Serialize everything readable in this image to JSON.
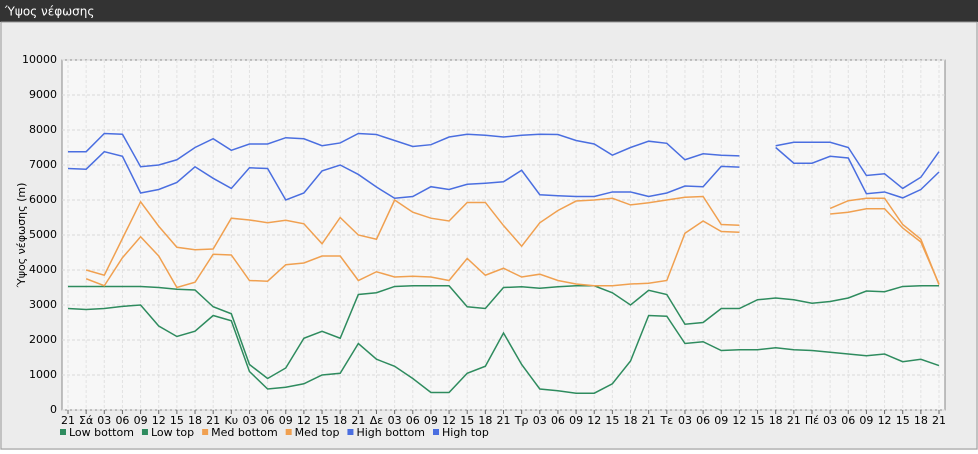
{
  "chart_data": {
    "type": "line",
    "title": "Ύψος νέφωσης",
    "y_label": "Ύψος νέφωσης (m)",
    "categories": [
      "21",
      "Σά",
      "03",
      "06",
      "09",
      "12",
      "15",
      "18",
      "21",
      "Κυ",
      "03",
      "06",
      "09",
      "12",
      "15",
      "18",
      "21",
      "Δε",
      "03",
      "06",
      "09",
      "12",
      "15",
      "18",
      "21",
      "Τρ",
      "03",
      "06",
      "09",
      "12",
      "15",
      "18",
      "21",
      "Τε",
      "03",
      "06",
      "09",
      "12",
      "15",
      "18",
      "21",
      "Πέ",
      "03",
      "06",
      "09",
      "12",
      "15",
      "18",
      "21"
    ],
    "ylim": [
      0,
      10000
    ],
    "yticks": [
      0,
      1000,
      2000,
      3000,
      4000,
      5000,
      6000,
      7000,
      8000,
      9000,
      10000
    ],
    "grid": true,
    "series": [
      {
        "name": "Low bottom",
        "color": "#2e8b5e",
        "values": [
          2900,
          2870,
          2900,
          2960,
          3000,
          2400,
          2100,
          2250,
          2700,
          2550,
          1100,
          600,
          650,
          750,
          1000,
          1050,
          1900,
          1450,
          1250,
          900,
          500,
          500,
          1050,
          1250,
          2200,
          1300,
          600,
          550,
          480,
          480,
          750,
          1400,
          2700,
          2680,
          1900,
          1950,
          1700,
          1720,
          1720,
          1780,
          1720,
          1700,
          1650,
          1600,
          1550,
          1600,
          1380,
          1450,
          1270
        ]
      },
      {
        "name": "Low top",
        "color": "#2e8b5e",
        "values": [
          3530,
          3530,
          3530,
          3530,
          3530,
          3500,
          3450,
          3430,
          2950,
          2750,
          1300,
          900,
          1200,
          2050,
          2250,
          2050,
          3300,
          3350,
          3530,
          3550,
          3550,
          3550,
          2950,
          2900,
          3500,
          3520,
          3480,
          3520,
          3550,
          3550,
          3350,
          3000,
          3420,
          3300,
          2450,
          2500,
          2900,
          2900,
          3150,
          3200,
          3150,
          3050,
          3100,
          3200,
          3400,
          3380,
          3530,
          3550,
          3550
        ]
      },
      {
        "name": "Med bottom",
        "color": "#f0a050",
        "values": [
          null,
          3750,
          3550,
          4350,
          4950,
          4400,
          3500,
          3650,
          4450,
          4430,
          3700,
          3680,
          4150,
          4200,
          4400,
          4400,
          3700,
          3950,
          3800,
          3820,
          3800,
          3700,
          4330,
          3850,
          4050,
          3800,
          3880,
          3700,
          3600,
          3550,
          3550,
          3600,
          3620,
          3700,
          5050,
          5400,
          5100,
          5080,
          null,
          null,
          null,
          null,
          5600,
          5650,
          5750,
          5750,
          5200,
          4800,
          3600
        ]
      },
      {
        "name": "Med top",
        "color": "#f0a050",
        "values": [
          null,
          4000,
          3850,
          4900,
          5950,
          5250,
          4650,
          4580,
          4600,
          5480,
          5430,
          5350,
          5420,
          5320,
          4750,
          5500,
          5000,
          4880,
          6000,
          5650,
          5480,
          5400,
          5930,
          5930,
          5270,
          4680,
          5350,
          5700,
          5970,
          6000,
          6050,
          5860,
          5920,
          6000,
          6080,
          6100,
          5300,
          5280,
          null,
          null,
          null,
          null,
          5760,
          5980,
          6050,
          6050,
          5300,
          4880,
          3580
        ]
      },
      {
        "name": "High bottom",
        "color": "#4a6ee0",
        "values": [
          6900,
          6880,
          7380,
          7250,
          6200,
          6300,
          6500,
          6950,
          6620,
          6330,
          6920,
          6900,
          6000,
          6200,
          6830,
          7000,
          6730,
          6370,
          6050,
          6100,
          6380,
          6300,
          6450,
          6480,
          6520,
          6850,
          6150,
          6120,
          6100,
          6100,
          6230,
          6230,
          6100,
          6200,
          6400,
          6380,
          6960,
          6940,
          null,
          7500,
          7050,
          7050,
          7250,
          7200,
          6180,
          6230,
          6060,
          6300,
          6800
        ]
      },
      {
        "name": "High top",
        "color": "#4a6ee0",
        "values": [
          7380,
          7380,
          7900,
          7880,
          6950,
          7000,
          7150,
          7500,
          7750,
          7420,
          7600,
          7600,
          7780,
          7750,
          7550,
          7630,
          7900,
          7870,
          7700,
          7530,
          7580,
          7800,
          7880,
          7850,
          7800,
          7850,
          7880,
          7870,
          7700,
          7600,
          7280,
          7500,
          7680,
          7620,
          7150,
          7320,
          7280,
          7260,
          null,
          7550,
          7650,
          7650,
          7650,
          7500,
          6700,
          6750,
          6330,
          6650,
          7380
        ]
      }
    ]
  }
}
